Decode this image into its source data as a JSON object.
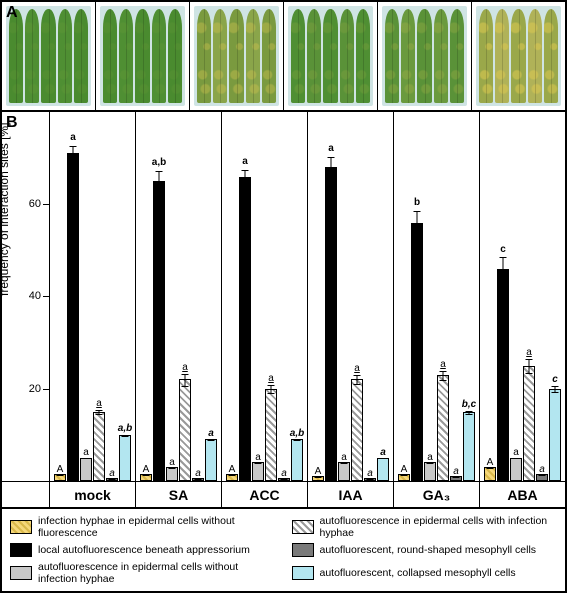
{
  "panelA_label": "A",
  "panelB_label": "B",
  "y_axis": {
    "title": "frequency of interaction sites [%]",
    "max": 80,
    "ticks": [
      20,
      40,
      60
    ]
  },
  "treatments": [
    "mock",
    "SA",
    "ACC",
    "IAA",
    "GA₃",
    "ABA"
  ],
  "leaf_colors": [
    [
      "#4a8b2f",
      "#4f8f33",
      "#4a8b2f",
      "#4f8f33",
      "#4a8b2f"
    ],
    [
      "#4a8b2f",
      "#4f8f33",
      "#4a8b2f",
      "#4f8f33",
      "#4a8b2f"
    ],
    [
      "#7a9a3f",
      "#8aa54a",
      "#7a9a3f",
      "#8aa54a",
      "#7a9a3f"
    ],
    [
      "#4f8f33",
      "#5a9238",
      "#4f8f33",
      "#5a9238",
      "#4f8f33"
    ],
    [
      "#5a9238",
      "#6a9a3e",
      "#5a9238",
      "#6a9a3e",
      "#5a9238"
    ],
    [
      "#9aa84a",
      "#b0b258",
      "#9aa84a",
      "#b0b258",
      "#9aa84a"
    ]
  ],
  "leaf_yellowing": [
    0.05,
    0.05,
    0.35,
    0.12,
    0.18,
    0.55
  ],
  "series": [
    {
      "key": "s1",
      "label": "infection hyphae in epidermal cells without fluorescence",
      "fill": "fill-yellow-hatch"
    },
    {
      "key": "s2",
      "label": "local autofluorescence beneath appressorium",
      "fill": "fill-black"
    },
    {
      "key": "s3",
      "label": "autofluorescence in epidermal cells without infection hyphae",
      "fill": "fill-gray-light"
    },
    {
      "key": "s4",
      "label": "autofluorescence in epidermal cells with infection hyphae",
      "fill": "fill-white-hatch"
    },
    {
      "key": "s5",
      "label": "autofluorescent, round-shaped mesophyll cells",
      "fill": "fill-gray-dark"
    },
    {
      "key": "s6",
      "label": "autofluorescent, collapsed mesophyll cells",
      "fill": "fill-cyan"
    }
  ],
  "values": {
    "mock": [
      1.5,
      71,
      5,
      15,
      0.5,
      10
    ],
    "SA": [
      1.5,
      65,
      3,
      22,
      0.5,
      9
    ],
    "ACC": [
      1.5,
      66,
      4,
      20,
      0.5,
      9
    ],
    "IAA": [
      1.0,
      68,
      4,
      22,
      0.5,
      5
    ],
    "GA₃": [
      1.5,
      56,
      4,
      23,
      1.0,
      15
    ],
    "ABA": [
      3.0,
      46,
      5,
      25,
      1.5,
      20
    ]
  },
  "errors": {
    "mock": [
      0.8,
      2,
      1.5,
      3,
      0.3,
      2
    ],
    "SA": [
      0.8,
      3,
      1.2,
      5,
      0.3,
      2
    ],
    "ACC": [
      0.8,
      2,
      1.2,
      4,
      0.3,
      2
    ],
    "IAA": [
      0.6,
      3,
      1.2,
      4,
      0.3,
      1.5
    ],
    "GA₃": [
      0.8,
      4,
      1.2,
      4,
      0.5,
      2.5
    ],
    "ABA": [
      1.0,
      5,
      1.5,
      5,
      0.6,
      3
    ]
  },
  "sig": {
    "mock": [
      "A",
      "a",
      "a",
      "a",
      "a",
      "a,b"
    ],
    "SA": [
      "A",
      "a,b",
      "a",
      "a",
      "a",
      "a"
    ],
    "ACC": [
      "A",
      "a",
      "a",
      "a",
      "a",
      "a,b"
    ],
    "IAA": [
      "A",
      "a",
      "a",
      "a",
      "a",
      "a"
    ],
    "GA₃": [
      "A",
      "b",
      "a",
      "a",
      "a",
      "b,c"
    ],
    "ABA": [
      "A",
      "c",
      "a",
      "a",
      "a",
      "c"
    ]
  },
  "sig_styles": [
    "font-weight:normal;",
    "font-weight:bold;",
    "font-weight:normal;",
    "font-weight:normal;text-decoration:underline;",
    "font-style:italic;",
    "font-style:italic;font-weight:bold;"
  ]
}
